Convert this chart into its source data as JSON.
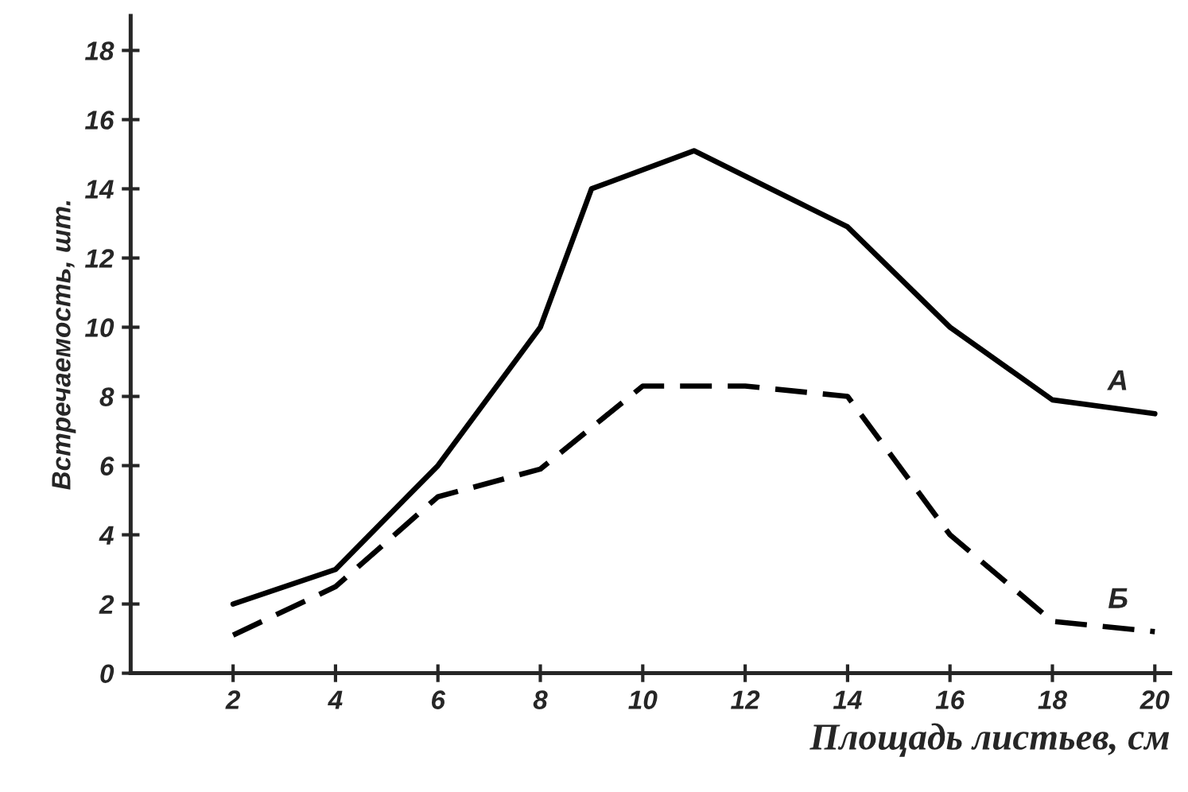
{
  "chart_data": {
    "type": "line",
    "xlabel": "Площадь листьев, см",
    "ylabel": "Встречаемость, шт.",
    "xlim": [
      0,
      20.3
    ],
    "ylim": [
      0,
      19
    ],
    "xticks": [
      2,
      4,
      6,
      8,
      10,
      12,
      14,
      16,
      18,
      20
    ],
    "yticks": [
      0,
      2,
      4,
      6,
      8,
      10,
      12,
      14,
      16,
      18
    ],
    "grid": false,
    "legend": false,
    "marker": "none",
    "series": [
      {
        "name": "А",
        "color": "#000000",
        "line_style": "solid",
        "x": [
          2,
          4,
          6,
          8,
          9,
          11,
          14,
          16,
          18,
          20
        ],
        "values": [
          2,
          3,
          6,
          10,
          14,
          15.1,
          12.9,
          10,
          7.9,
          7.5
        ]
      },
      {
        "name": "Б",
        "color": "#000000",
        "line_style": "dashed",
        "x": [
          2,
          4,
          6,
          8,
          10,
          12,
          14,
          16,
          18,
          20
        ],
        "values": [
          1.1,
          2.5,
          5.1,
          5.9,
          8.3,
          8.3,
          8,
          4,
          1.5,
          1.2
        ]
      }
    ]
  }
}
